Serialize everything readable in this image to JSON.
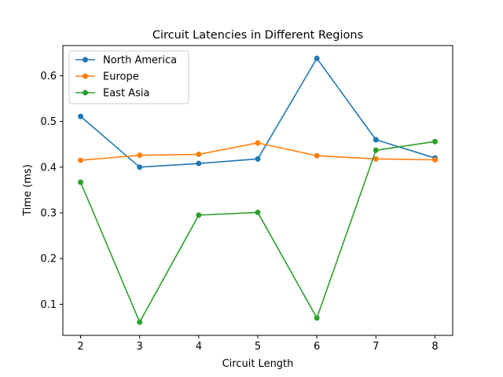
{
  "chart_data": {
    "type": "line",
    "title": "Circuit Latencies in Different Regions",
    "xlabel": "Circuit Length",
    "ylabel": "Time (ms)",
    "x": [
      2,
      3,
      4,
      5,
      6,
      7,
      8
    ],
    "xlim": [
      1.7,
      8.3
    ],
    "ylim": [
      0.032,
      0.666
    ],
    "xticks": [
      2,
      3,
      4,
      5,
      6,
      7,
      8
    ],
    "yticks": [
      0.1,
      0.2,
      0.3,
      0.4,
      0.5,
      0.6
    ],
    "grid": false,
    "legend_position": "top-left",
    "series": [
      {
        "name": "North America",
        "color": "#1f77b4",
        "values": [
          0.511,
          0.4,
          0.408,
          0.418,
          0.638,
          0.46,
          0.42
        ]
      },
      {
        "name": "Europe",
        "color": "#ff7f0e",
        "values": [
          0.415,
          0.426,
          0.428,
          0.453,
          0.425,
          0.418,
          0.416
        ]
      },
      {
        "name": "East Asia",
        "color": "#2ca02c",
        "values": [
          0.367,
          0.061,
          0.295,
          0.301,
          0.07,
          0.437,
          0.456
        ]
      }
    ]
  }
}
